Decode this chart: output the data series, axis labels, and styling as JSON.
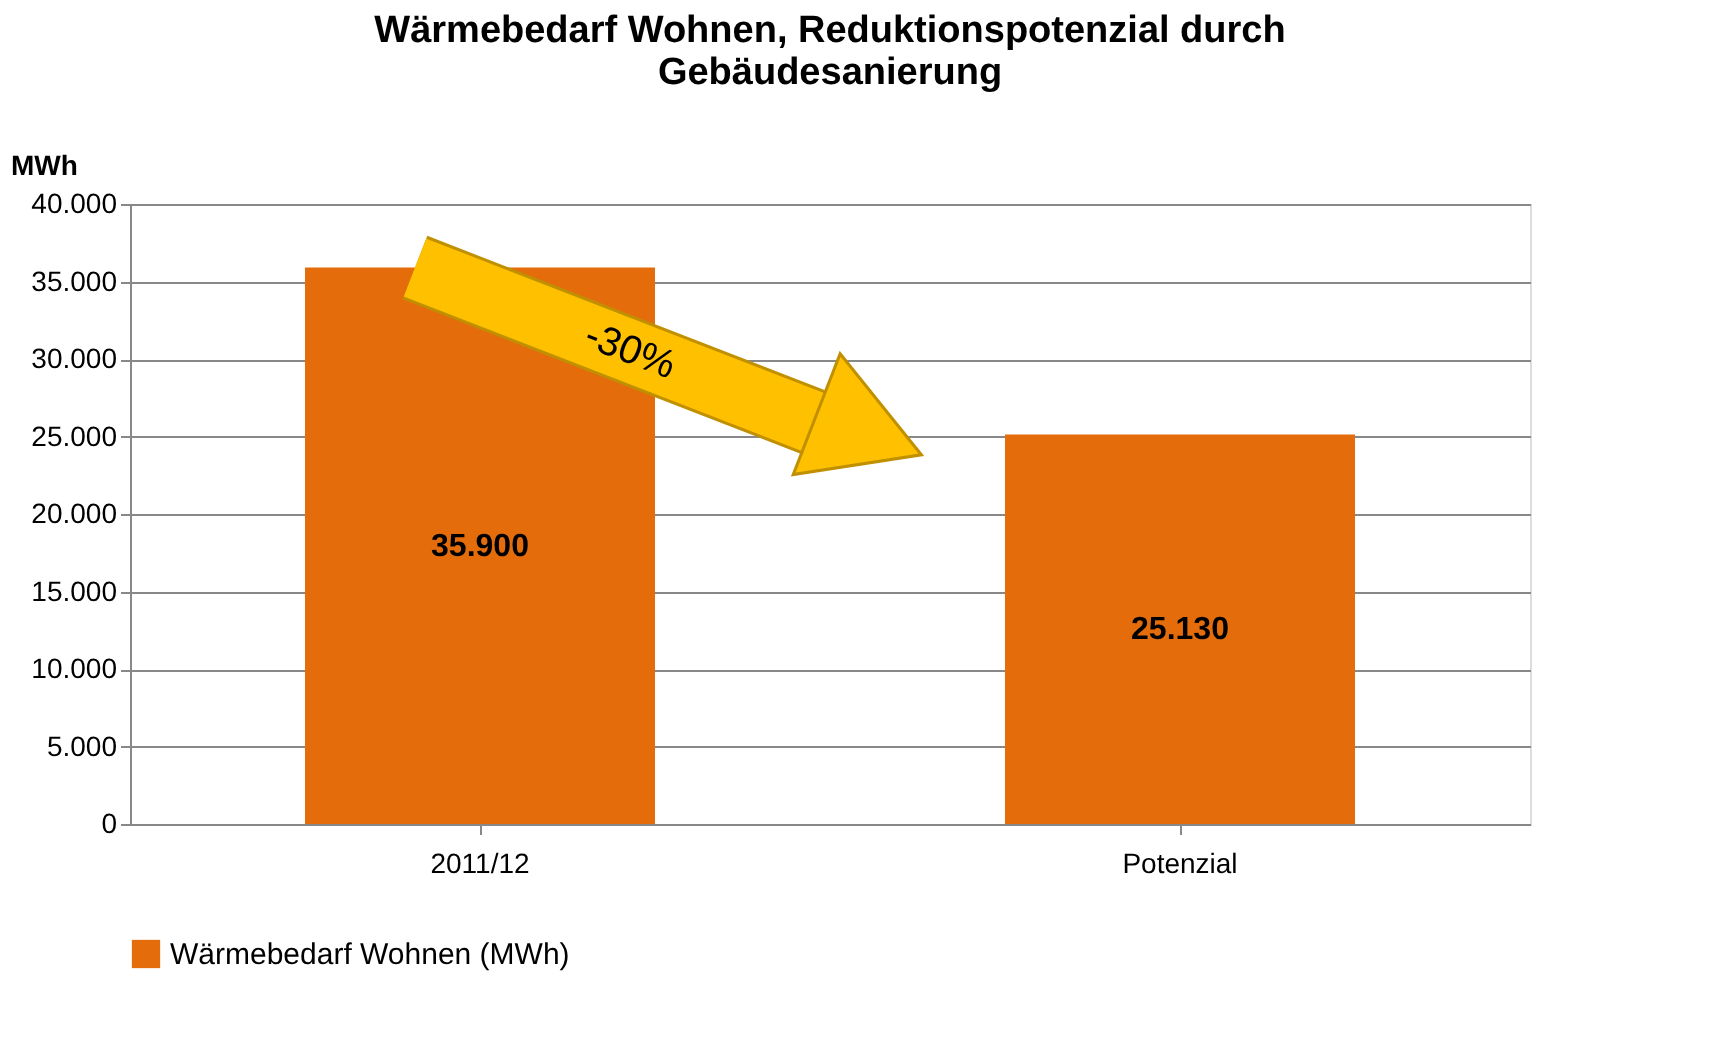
{
  "chart_data": {
    "type": "bar",
    "title": "Wärmebedarf  Wohnen, Reduktionspotenzial durch Gebäudesanierung",
    "ylabel": "MWh",
    "categories": [
      "2011/12",
      "Potenzial"
    ],
    "series": [
      {
        "name": "Wärmebedarf Wohnen (MWh)",
        "color": "#e46c0a",
        "values": [
          35900,
          25130
        ],
        "value_labels": [
          "35.900",
          "25.130"
        ]
      }
    ],
    "ylim": [
      0,
      40000
    ],
    "yticks": [
      0,
      {
        "value": 5000,
        "label": "5.000"
      },
      {
        "value": 10000,
        "label": "10.000"
      },
      {
        "value": 15000,
        "label": "15.000"
      },
      {
        "value": 20000,
        "label": "20.000"
      },
      {
        "value": 25000,
        "label": "25.000"
      },
      {
        "value": 30000,
        "label": "30.000"
      },
      {
        "value": 35000,
        "label": "35.000"
      },
      {
        "value": 40000,
        "label": "40.000"
      }
    ],
    "grid": "y",
    "legend": "bottom",
    "annotations": [
      "-30%"
    ]
  }
}
